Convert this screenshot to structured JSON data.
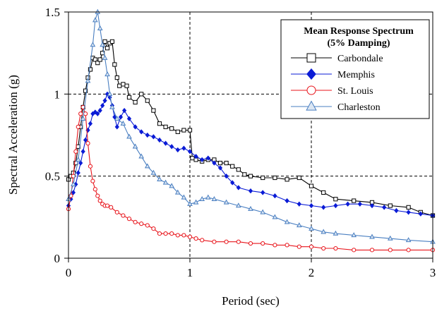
{
  "chart_data": {
    "type": "line",
    "xlabel": "Period (sec)",
    "ylabel": "Spectral Acceleration (g)",
    "xlim": [
      0,
      3
    ],
    "ylim": [
      0,
      1.5
    ],
    "xticks": [
      0,
      1,
      2,
      3
    ],
    "xtick_labels": [
      "0",
      "1",
      "2",
      "3"
    ],
    "yticks": [
      0,
      0.5,
      1,
      1.5
    ],
    "ytick_labels": [
      "0",
      "0.5",
      "1",
      "1.5"
    ],
    "grid": "dashed at x=1, x=2, y=0.5, y=1",
    "legend": {
      "placement": "top-right",
      "title_lines": [
        "Mean Response Spectrum",
        "(5% Damping)"
      ]
    },
    "series": [
      {
        "name": "Carbondale",
        "color": "#000000",
        "marker": "square-open",
        "points": [
          [
            0.0,
            0.48
          ],
          [
            0.02,
            0.5
          ],
          [
            0.04,
            0.52
          ],
          [
            0.06,
            0.58
          ],
          [
            0.08,
            0.68
          ],
          [
            0.1,
            0.8
          ],
          [
            0.12,
            0.92
          ],
          [
            0.14,
            1.02
          ],
          [
            0.16,
            1.1
          ],
          [
            0.18,
            1.15
          ],
          [
            0.2,
            1.22
          ],
          [
            0.22,
            1.21
          ],
          [
            0.24,
            1.19
          ],
          [
            0.26,
            1.21
          ],
          [
            0.28,
            1.25
          ],
          [
            0.3,
            1.32
          ],
          [
            0.32,
            1.28
          ],
          [
            0.34,
            1.31
          ],
          [
            0.36,
            1.32
          ],
          [
            0.38,
            1.18
          ],
          [
            0.4,
            1.1
          ],
          [
            0.42,
            1.05
          ],
          [
            0.45,
            1.06
          ],
          [
            0.48,
            1.05
          ],
          [
            0.5,
            0.98
          ],
          [
            0.55,
            0.95
          ],
          [
            0.6,
            1.0
          ],
          [
            0.65,
            0.96
          ],
          [
            0.7,
            0.9
          ],
          [
            0.75,
            0.82
          ],
          [
            0.8,
            0.8
          ],
          [
            0.85,
            0.79
          ],
          [
            0.9,
            0.77
          ],
          [
            0.95,
            0.78
          ],
          [
            1.0,
            0.78
          ],
          [
            1.02,
            0.61
          ],
          [
            1.05,
            0.6
          ],
          [
            1.1,
            0.59
          ],
          [
            1.15,
            0.6
          ],
          [
            1.2,
            0.6
          ],
          [
            1.25,
            0.58
          ],
          [
            1.3,
            0.58
          ],
          [
            1.35,
            0.56
          ],
          [
            1.4,
            0.54
          ],
          [
            1.45,
            0.51
          ],
          [
            1.5,
            0.5
          ],
          [
            1.6,
            0.49
          ],
          [
            1.7,
            0.49
          ],
          [
            1.8,
            0.48
          ],
          [
            1.9,
            0.49
          ],
          [
            2.0,
            0.44
          ],
          [
            2.1,
            0.4
          ],
          [
            2.2,
            0.36
          ],
          [
            2.35,
            0.35
          ],
          [
            2.5,
            0.34
          ],
          [
            2.65,
            0.32
          ],
          [
            2.8,
            0.31
          ],
          [
            2.9,
            0.28
          ],
          [
            3.0,
            0.26
          ]
        ]
      },
      {
        "name": "Memphis",
        "color": "#0a1bd6",
        "marker": "diamond-filled",
        "points": [
          [
            0.0,
            0.32
          ],
          [
            0.02,
            0.36
          ],
          [
            0.04,
            0.4
          ],
          [
            0.06,
            0.45
          ],
          [
            0.08,
            0.52
          ],
          [
            0.1,
            0.58
          ],
          [
            0.12,
            0.65
          ],
          [
            0.14,
            0.72
          ],
          [
            0.16,
            0.78
          ],
          [
            0.18,
            0.82
          ],
          [
            0.2,
            0.88
          ],
          [
            0.22,
            0.89
          ],
          [
            0.24,
            0.88
          ],
          [
            0.26,
            0.9
          ],
          [
            0.28,
            0.93
          ],
          [
            0.3,
            0.96
          ],
          [
            0.32,
            1.0
          ],
          [
            0.34,
            0.98
          ],
          [
            0.36,
            0.93
          ],
          [
            0.38,
            0.86
          ],
          [
            0.4,
            0.8
          ],
          [
            0.43,
            0.86
          ],
          [
            0.46,
            0.9
          ],
          [
            0.5,
            0.85
          ],
          [
            0.55,
            0.8
          ],
          [
            0.6,
            0.77
          ],
          [
            0.65,
            0.75
          ],
          [
            0.7,
            0.74
          ],
          [
            0.75,
            0.72
          ],
          [
            0.8,
            0.7
          ],
          [
            0.85,
            0.68
          ],
          [
            0.9,
            0.66
          ],
          [
            0.95,
            0.67
          ],
          [
            1.0,
            0.65
          ],
          [
            1.05,
            0.62
          ],
          [
            1.1,
            0.6
          ],
          [
            1.15,
            0.61
          ],
          [
            1.2,
            0.58
          ],
          [
            1.25,
            0.55
          ],
          [
            1.3,
            0.5
          ],
          [
            1.35,
            0.46
          ],
          [
            1.4,
            0.43
          ],
          [
            1.5,
            0.41
          ],
          [
            1.6,
            0.4
          ],
          [
            1.7,
            0.38
          ],
          [
            1.8,
            0.35
          ],
          [
            1.9,
            0.33
          ],
          [
            2.0,
            0.32
          ],
          [
            2.1,
            0.31
          ],
          [
            2.2,
            0.32
          ],
          [
            2.3,
            0.33
          ],
          [
            2.4,
            0.33
          ],
          [
            2.5,
            0.32
          ],
          [
            2.6,
            0.31
          ],
          [
            2.7,
            0.29
          ],
          [
            2.8,
            0.28
          ],
          [
            2.9,
            0.27
          ],
          [
            3.0,
            0.26
          ]
        ]
      },
      {
        "name": "St. Louis",
        "color": "#e8141b",
        "marker": "circle-open",
        "points": [
          [
            0.0,
            0.3
          ],
          [
            0.02,
            0.38
          ],
          [
            0.04,
            0.5
          ],
          [
            0.06,
            0.65
          ],
          [
            0.08,
            0.8
          ],
          [
            0.1,
            0.88
          ],
          [
            0.12,
            0.92
          ],
          [
            0.14,
            0.88
          ],
          [
            0.16,
            0.7
          ],
          [
            0.18,
            0.56
          ],
          [
            0.2,
            0.47
          ],
          [
            0.22,
            0.42
          ],
          [
            0.24,
            0.38
          ],
          [
            0.26,
            0.35
          ],
          [
            0.28,
            0.33
          ],
          [
            0.3,
            0.32
          ],
          [
            0.32,
            0.32
          ],
          [
            0.35,
            0.31
          ],
          [
            0.4,
            0.28
          ],
          [
            0.45,
            0.26
          ],
          [
            0.5,
            0.24
          ],
          [
            0.55,
            0.22
          ],
          [
            0.6,
            0.21
          ],
          [
            0.65,
            0.2
          ],
          [
            0.7,
            0.18
          ],
          [
            0.75,
            0.15
          ],
          [
            0.8,
            0.15
          ],
          [
            0.85,
            0.15
          ],
          [
            0.9,
            0.14
          ],
          [
            0.95,
            0.14
          ],
          [
            1.0,
            0.13
          ],
          [
            1.05,
            0.12
          ],
          [
            1.1,
            0.11
          ],
          [
            1.2,
            0.1
          ],
          [
            1.3,
            0.1
          ],
          [
            1.4,
            0.1
          ],
          [
            1.5,
            0.09
          ],
          [
            1.6,
            0.09
          ],
          [
            1.7,
            0.08
          ],
          [
            1.8,
            0.08
          ],
          [
            1.9,
            0.07
          ],
          [
            2.0,
            0.07
          ],
          [
            2.1,
            0.06
          ],
          [
            2.2,
            0.06
          ],
          [
            2.35,
            0.05
          ],
          [
            2.5,
            0.05
          ],
          [
            2.65,
            0.05
          ],
          [
            2.8,
            0.05
          ],
          [
            3.0,
            0.05
          ]
        ]
      },
      {
        "name": "Charleston",
        "color": "#4a7fc1",
        "marker": "triangle-open",
        "points": [
          [
            0.0,
            0.36
          ],
          [
            0.04,
            0.45
          ],
          [
            0.08,
            0.6
          ],
          [
            0.12,
            0.85
          ],
          [
            0.16,
            1.08
          ],
          [
            0.2,
            1.3
          ],
          [
            0.22,
            1.45
          ],
          [
            0.24,
            1.5
          ],
          [
            0.26,
            1.4
          ],
          [
            0.28,
            1.3
          ],
          [
            0.3,
            1.22
          ],
          [
            0.32,
            1.12
          ],
          [
            0.34,
            1.0
          ],
          [
            0.36,
            0.92
          ],
          [
            0.4,
            0.85
          ],
          [
            0.45,
            0.82
          ],
          [
            0.5,
            0.74
          ],
          [
            0.55,
            0.68
          ],
          [
            0.6,
            0.62
          ],
          [
            0.65,
            0.56
          ],
          [
            0.7,
            0.52
          ],
          [
            0.75,
            0.48
          ],
          [
            0.8,
            0.46
          ],
          [
            0.85,
            0.44
          ],
          [
            0.9,
            0.4
          ],
          [
            0.95,
            0.37
          ],
          [
            1.0,
            0.33
          ],
          [
            1.05,
            0.34
          ],
          [
            1.1,
            0.36
          ],
          [
            1.15,
            0.37
          ],
          [
            1.2,
            0.36
          ],
          [
            1.3,
            0.34
          ],
          [
            1.4,
            0.32
          ],
          [
            1.5,
            0.3
          ],
          [
            1.6,
            0.28
          ],
          [
            1.7,
            0.25
          ],
          [
            1.8,
            0.22
          ],
          [
            1.9,
            0.2
          ],
          [
            2.0,
            0.18
          ],
          [
            2.1,
            0.16
          ],
          [
            2.2,
            0.15
          ],
          [
            2.35,
            0.14
          ],
          [
            2.5,
            0.13
          ],
          [
            2.65,
            0.12
          ],
          [
            2.8,
            0.11
          ],
          [
            3.0,
            0.1
          ]
        ]
      }
    ]
  }
}
